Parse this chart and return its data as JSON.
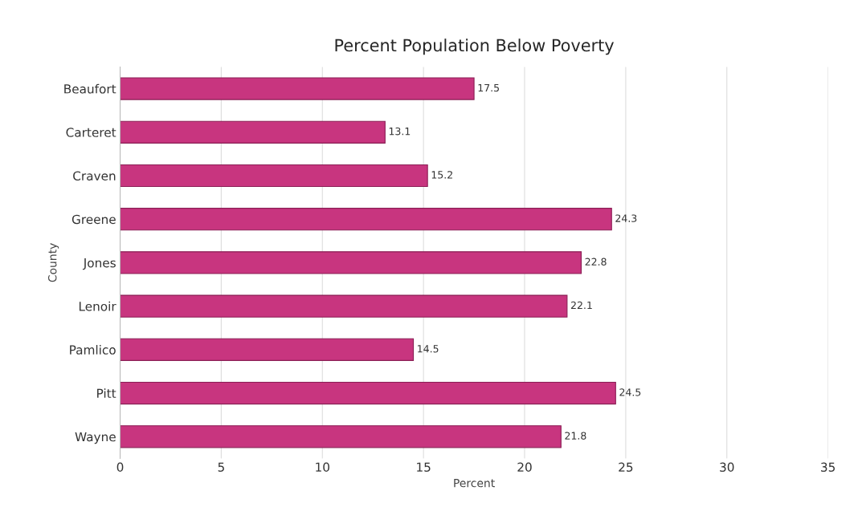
{
  "chart_data": {
    "type": "bar",
    "orientation": "horizontal",
    "title": "Percent Population Below Poverty",
    "xlabel": "Percent",
    "ylabel": "County",
    "categories": [
      "Beaufort",
      "Carteret",
      "Craven",
      "Greene",
      "Jones",
      "Lenoir",
      "Pamlico",
      "Pitt",
      "Wayne"
    ],
    "values": [
      17.5,
      13.1,
      15.2,
      24.3,
      22.8,
      22.1,
      14.5,
      24.5,
      21.8
    ],
    "color": "#c8357f",
    "xlim": [
      0,
      35
    ],
    "xticks": [
      0,
      5,
      10,
      15,
      20,
      25,
      30,
      35
    ],
    "grid": "x",
    "data_labels": true
  }
}
